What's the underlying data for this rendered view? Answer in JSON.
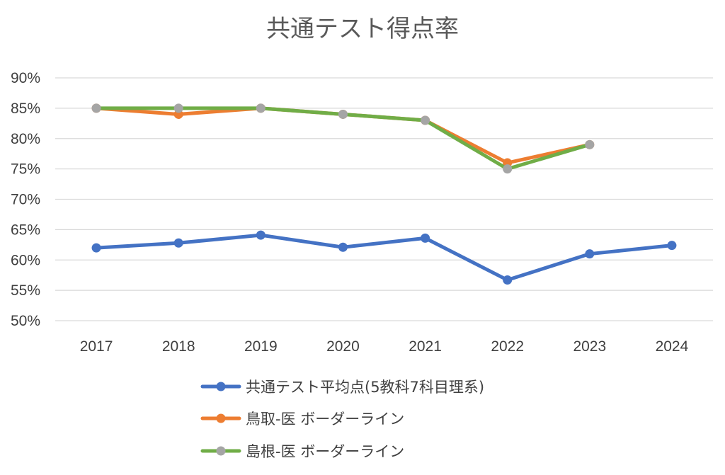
{
  "chart_data": {
    "type": "line",
    "title": "共通テスト得点率",
    "xlabel": "",
    "ylabel": "",
    "categories": [
      "2017",
      "2018",
      "2019",
      "2020",
      "2021",
      "2022",
      "2023",
      "2024"
    ],
    "ylim": [
      50,
      90
    ],
    "yticks": [
      50,
      55,
      60,
      65,
      70,
      75,
      80,
      85,
      90
    ],
    "ytick_labels": [
      "50%",
      "55%",
      "60%",
      "65%",
      "70%",
      "75%",
      "80%",
      "85%",
      "90%"
    ],
    "grid": true,
    "legend_position": "bottom",
    "series": [
      {
        "name": "共通テスト平均点(5教科7科目理系)",
        "color": "#4472c4",
        "marker_color": "#4472c4",
        "values": [
          62.0,
          62.8,
          64.1,
          62.1,
          63.6,
          56.7,
          61.0,
          62.4
        ]
      },
      {
        "name": "鳥取-医 ボーダーライン",
        "color": "#ed7d31",
        "marker_color": "#ed7d31",
        "values": [
          85,
          84,
          85,
          84,
          83,
          76,
          79,
          null
        ]
      },
      {
        "name": "島根-医 ボーダーライン",
        "color": "#70ad47",
        "marker_color": "#a5a5a5",
        "values": [
          85,
          85,
          85,
          84,
          83,
          75,
          79,
          null
        ]
      }
    ]
  }
}
